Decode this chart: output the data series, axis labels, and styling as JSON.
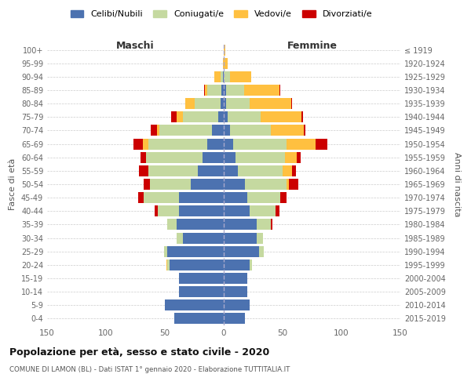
{
  "age_groups": [
    "0-4",
    "5-9",
    "10-14",
    "15-19",
    "20-24",
    "25-29",
    "30-34",
    "35-39",
    "40-44",
    "45-49",
    "50-54",
    "55-59",
    "60-64",
    "65-69",
    "70-74",
    "75-79",
    "80-84",
    "85-89",
    "90-94",
    "95-99",
    "100+"
  ],
  "birth_years": [
    "2015-2019",
    "2010-2014",
    "2005-2009",
    "2000-2004",
    "1995-1999",
    "1990-1994",
    "1985-1989",
    "1980-1984",
    "1975-1979",
    "1970-1974",
    "1965-1969",
    "1960-1964",
    "1955-1959",
    "1950-1954",
    "1945-1949",
    "1940-1944",
    "1935-1939",
    "1930-1934",
    "1925-1929",
    "1920-1924",
    "≤ 1919"
  ],
  "maschi": {
    "celibi": [
      42,
      50,
      38,
      38,
      46,
      48,
      35,
      40,
      38,
      38,
      28,
      22,
      18,
      14,
      10,
      5,
      3,
      2,
      1,
      0,
      0
    ],
    "coniugati": [
      0,
      0,
      0,
      0,
      2,
      3,
      5,
      8,
      18,
      30,
      35,
      42,
      48,
      50,
      45,
      30,
      22,
      12,
      2,
      0,
      0
    ],
    "vedovi": [
      0,
      0,
      0,
      0,
      1,
      0,
      0,
      0,
      0,
      0,
      0,
      0,
      0,
      5,
      2,
      5,
      8,
      2,
      5,
      1,
      0
    ],
    "divorziati": [
      0,
      0,
      0,
      0,
      0,
      0,
      0,
      0,
      3,
      5,
      5,
      8,
      5,
      8,
      5,
      5,
      0,
      1,
      0,
      0,
      0
    ]
  },
  "femmine": {
    "nubili": [
      18,
      22,
      20,
      20,
      22,
      30,
      28,
      28,
      22,
      20,
      18,
      12,
      10,
      8,
      5,
      3,
      2,
      2,
      0,
      0,
      0
    ],
    "coniugate": [
      0,
      0,
      0,
      0,
      2,
      4,
      5,
      12,
      22,
      28,
      35,
      38,
      42,
      45,
      35,
      28,
      20,
      15,
      5,
      0,
      0
    ],
    "vedove": [
      0,
      0,
      0,
      0,
      0,
      0,
      0,
      0,
      0,
      0,
      2,
      8,
      10,
      25,
      28,
      35,
      35,
      30,
      18,
      3,
      1
    ],
    "divorziate": [
      0,
      0,
      0,
      0,
      0,
      0,
      0,
      1,
      3,
      5,
      8,
      3,
      3,
      10,
      1,
      1,
      1,
      1,
      0,
      0,
      0
    ]
  },
  "colors": {
    "celibi": "#4c72b0",
    "coniugati": "#c5d9a0",
    "vedovi": "#ffc040",
    "divorziati": "#cc0000"
  },
  "legend_labels": [
    "Celibi/Nubili",
    "Coniugati/e",
    "Vedovi/e",
    "Divorziati/e"
  ],
  "title": "Popolazione per età, sesso e stato civile - 2020",
  "subtitle": "COMUNE DI LAMON (BL) - Dati ISTAT 1° gennaio 2020 - Elaborazione TUTTITALIA.IT",
  "xlabel_left": "Maschi",
  "xlabel_right": "Femmine",
  "ylabel_left": "Fasce di età",
  "ylabel_right": "Anni di nascita",
  "xlim": 150,
  "bg_color": "#ffffff",
  "grid_color": "#cccccc"
}
